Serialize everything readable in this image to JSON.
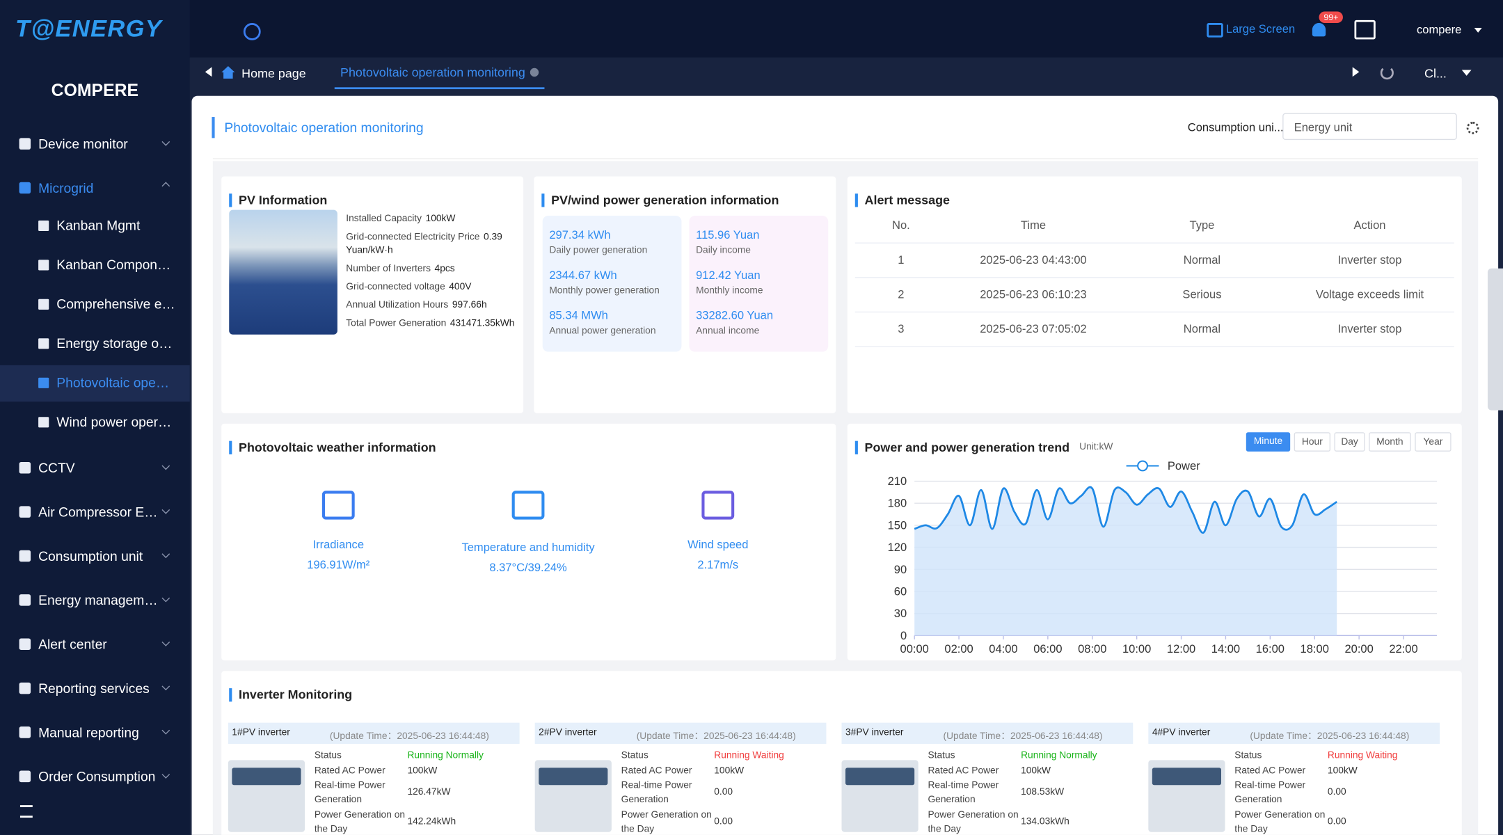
{
  "header": {
    "logo": "T@ENERGY",
    "large_screen": "Large Screen",
    "badge": "99+",
    "user": "compere"
  },
  "sidebar": {
    "brand": "COMPERE",
    "items": [
      {
        "label": "Device monitor"
      },
      {
        "label": "Microgrid",
        "active": true,
        "children": [
          {
            "label": "Kanban Mgmt"
          },
          {
            "label": "Kanban Compon…"
          },
          {
            "label": "Comprehensive e…"
          },
          {
            "label": "Energy storage o…"
          },
          {
            "label": "Photovoltaic ope…",
            "active": true
          },
          {
            "label": "Wind power oper…"
          }
        ]
      },
      {
        "label": "CCTV"
      },
      {
        "label": "Air Compressor E…"
      },
      {
        "label": "Consumption unit"
      },
      {
        "label": "Energy managem…"
      },
      {
        "label": "Alert center"
      },
      {
        "label": "Reporting services"
      },
      {
        "label": "Manual reporting"
      },
      {
        "label": "Order Consumption"
      }
    ]
  },
  "tabs": {
    "home": "Home page",
    "active": "Photovoltaic operation monitoring",
    "more": "Cl..."
  },
  "page": {
    "title": "Photovoltaic operation monitoring",
    "filter_label": "Consumption uni...",
    "filter_value": "Energy unit"
  },
  "pv_info": {
    "title": "PV Information",
    "fields": [
      {
        "label": "Installed Capacity",
        "value": "100kW"
      },
      {
        "label": "Grid-connected Electricity Price",
        "value": "0.39 Yuan/kW·h"
      },
      {
        "label": "Number of Inverters",
        "value": "4pcs"
      },
      {
        "label": "Grid-connected voltage",
        "value": "400V"
      },
      {
        "label": "Annual Utilization Hours",
        "value": "997.66h"
      },
      {
        "label": "Total Power Generation",
        "value": "431471.35kWh"
      }
    ]
  },
  "generation": {
    "title": "PV/wind power generation information",
    "power": [
      {
        "value": "297.34 kWh",
        "label": "Daily power generation"
      },
      {
        "value": "2344.67 kWh",
        "label": "Monthly power generation"
      },
      {
        "value": "85.34 MWh",
        "label": "Annual power generation"
      }
    ],
    "income": [
      {
        "value": "115.96 Yuan",
        "label": "Daily income"
      },
      {
        "value": "912.42 Yuan",
        "label": "Monthly income"
      },
      {
        "value": "33282.60 Yuan",
        "label": "Annual income"
      }
    ]
  },
  "alerts": {
    "title": "Alert message",
    "columns": [
      "No.",
      "Time",
      "Type",
      "Action"
    ],
    "rows": [
      [
        "1",
        "2025-06-23 04:43:00",
        "Normal",
        "Inverter stop"
      ],
      [
        "2",
        "2025-06-23 06:10:23",
        "Serious",
        "Voltage exceeds limit"
      ],
      [
        "3",
        "2025-06-23 07:05:02",
        "Normal",
        "Inverter stop"
      ]
    ]
  },
  "weather": {
    "title": "Photovoltaic weather information",
    "items": [
      {
        "label": "Irradiance",
        "value": "196.91W/m²"
      },
      {
        "label": "Temperature and humidity",
        "value": "8.37°C/39.24%"
      },
      {
        "label": "Wind speed",
        "value": "2.17m/s"
      }
    ]
  },
  "trend_controls": {
    "buttons": [
      {
        "label": "Minute",
        "active": true
      },
      {
        "label": "Hour"
      },
      {
        "label": "Day"
      },
      {
        "label": "Month"
      },
      {
        "label": "Year"
      }
    ]
  },
  "chart_data": {
    "type": "line",
    "title": "Power and power generation trend",
    "unit": "Unit:kW",
    "categories": [
      "00:00",
      null,
      null,
      null,
      "02:00",
      null,
      null,
      null,
      "04:00",
      null,
      null,
      null,
      "06:00",
      null,
      null,
      null,
      "08:00",
      null,
      null,
      null,
      "10:00",
      null,
      null,
      null,
      "12:00",
      null,
      null,
      null,
      "14:00",
      null,
      null,
      null,
      "16:00",
      null,
      null,
      null,
      "18:00",
      null,
      null,
      null,
      "20:00",
      null,
      null,
      null,
      "22:00",
      null,
      null,
      null
    ],
    "series": [
      {
        "name": "Power",
        "color": "#1e88e5",
        "values": [
          145,
          150,
          146,
          165,
          190,
          150,
          198,
          145,
          200,
          168,
          152,
          198,
          158,
          200,
          180,
          190,
          200,
          148,
          198,
          195,
          178,
          192,
          200,
          175,
          196,
          168,
          140,
          182,
          150,
          186,
          196,
          162,
          186,
          148,
          150,
          192,
          165,
          172,
          182,
          null,
          null,
          null,
          null,
          null,
          null,
          null,
          null,
          null
        ]
      }
    ],
    "ylim": [
      0,
      210
    ],
    "yticks": [
      0,
      30,
      60,
      90,
      120,
      150,
      180,
      210
    ],
    "grid": true,
    "area": true
  },
  "inverters": {
    "title": "Inverter Monitoring",
    "items": [
      {
        "name": "1#PV inverter",
        "update": "(Update Time：2025-06-23 16:44:48)",
        "status_color": "#19b319",
        "fields": [
          {
            "label": "Status",
            "value": "Running Normally"
          },
          {
            "label": "Rated AC Power",
            "value": "100kW"
          },
          {
            "label": "Real-time Power Generation",
            "value": "126.47kW"
          },
          {
            "label": "Power Generation on the Day",
            "value": "142.24kWh"
          }
        ]
      },
      {
        "name": "2#PV inverter",
        "update": "(Update Time：2025-06-23 16:44:48)",
        "status_color": "#f03c3c",
        "fields": [
          {
            "label": "Status",
            "value": "Running Waiting"
          },
          {
            "label": "Rated AC Power",
            "value": "100kW"
          },
          {
            "label": "Real-time Power Generation",
            "value": "0.00"
          },
          {
            "label": "Power Generation on the Day",
            "value": "0.00"
          }
        ]
      },
      {
        "name": "3#PV inverter",
        "update": "(Update Time：2025-06-23 16:44:48)",
        "status_color": "#19b319",
        "fields": [
          {
            "label": "Status",
            "value": "Running Normally"
          },
          {
            "label": "Rated AC Power",
            "value": "100kW"
          },
          {
            "label": "Real-time Power Generation",
            "value": "108.53kW"
          },
          {
            "label": "Power Generation on the Day",
            "value": "134.03kWh"
          }
        ]
      },
      {
        "name": "4#PV inverter",
        "update": "(Update Time：2025-06-23 16:44:48)",
        "status_color": "#f03c3c",
        "fields": [
          {
            "label": "Status",
            "value": "Running Waiting"
          },
          {
            "label": "Rated AC Power",
            "value": "100kW"
          },
          {
            "label": "Real-time Power Generation",
            "value": "0.00"
          },
          {
            "label": "Power Generation on the Day",
            "value": "0.00"
          }
        ]
      }
    ]
  }
}
